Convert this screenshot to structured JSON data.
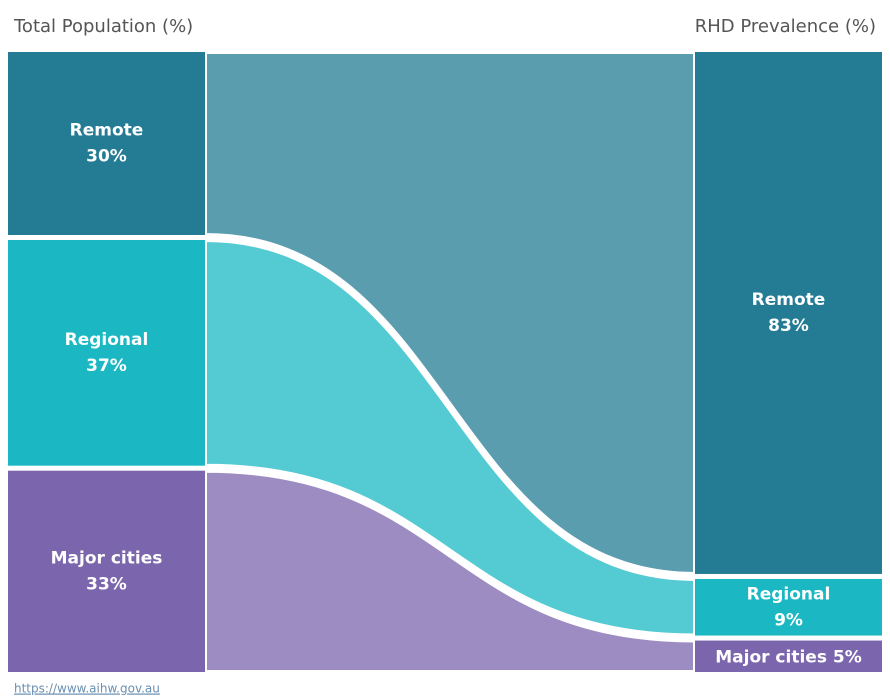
{
  "chart_data": {
    "type": "sankey",
    "categories": [
      "Remote",
      "Regional",
      "Major cities"
    ],
    "colors": [
      "#237c94",
      "#1bb8c4",
      "#7b65ad"
    ],
    "series": [
      {
        "name": "Total Population (%)",
        "values": [
          30,
          37,
          33
        ],
        "value_labels": [
          "30%",
          "37%",
          "33%"
        ]
      },
      {
        "name": "RHD Prevalence (%)",
        "values": [
          83,
          9,
          5
        ],
        "value_labels": [
          "83%",
          "9%",
          "5%"
        ]
      }
    ],
    "source": "https://www.aihw.gov.au"
  }
}
